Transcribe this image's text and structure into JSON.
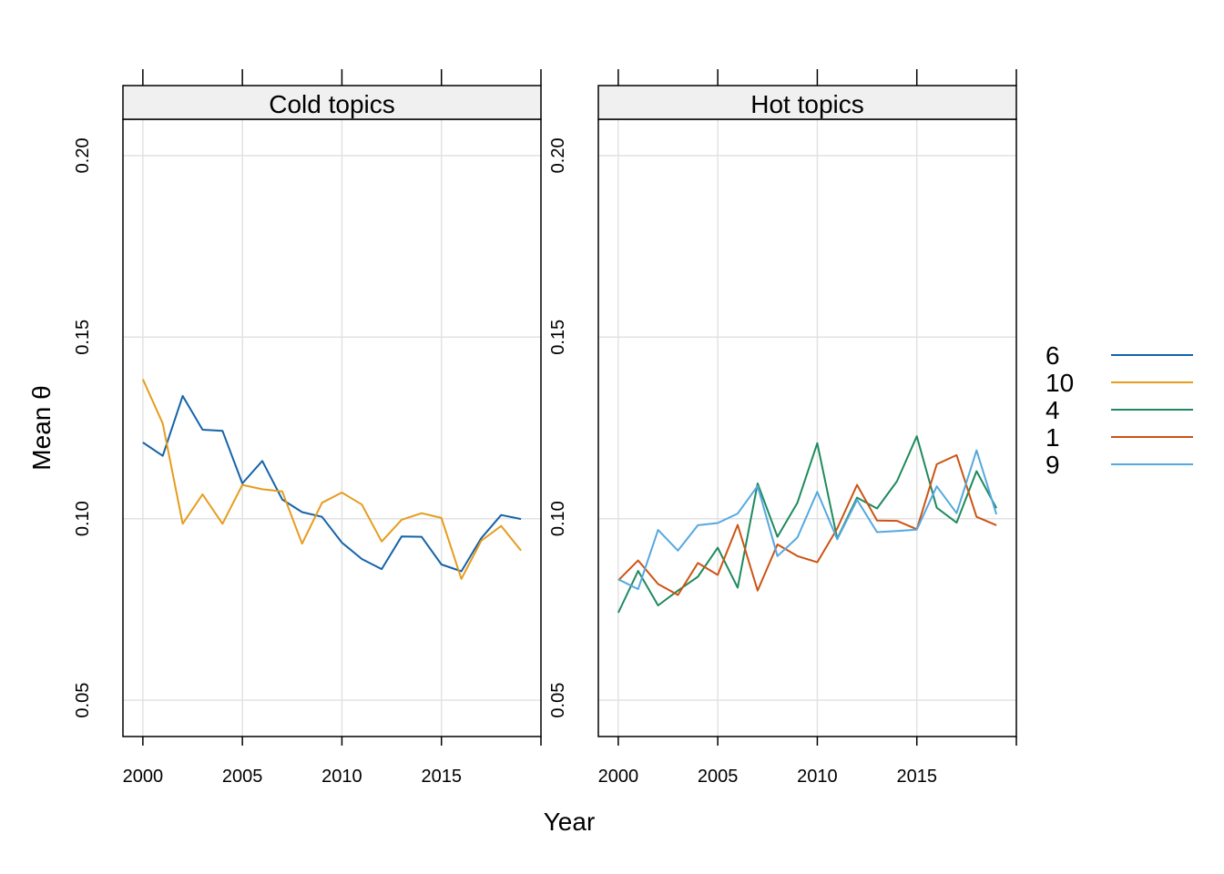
{
  "chart_data": {
    "type": "line",
    "xlabel": "Year",
    "ylabel": "Mean θ",
    "xlim": [
      1999,
      2020
    ],
    "ylim": [
      0.04,
      0.21
    ],
    "x_ticks": [
      2000,
      2005,
      2010,
      2015
    ],
    "y_ticks": [
      0.05,
      0.1,
      0.15,
      0.2
    ],
    "x_tick_labels": [
      "2000",
      "2005",
      "2010",
      "2015"
    ],
    "y_tick_labels": [
      "0.05",
      "0.10",
      "0.15",
      "0.20"
    ],
    "grid": true,
    "legend_position": "right",
    "legend": [
      {
        "name": "6",
        "color": "#1563a8"
      },
      {
        "name": "10",
        "color": "#e69c1d"
      },
      {
        "name": "4",
        "color": "#1f8a5e"
      },
      {
        "name": "1",
        "color": "#cc5414"
      },
      {
        "name": "9",
        "color": "#55a8e0"
      }
    ],
    "x": [
      2000,
      2001,
      2002,
      2003,
      2004,
      2005,
      2006,
      2007,
      2008,
      2009,
      2010,
      2011,
      2012,
      2013,
      2014,
      2015,
      2016,
      2017,
      2018,
      2019
    ],
    "panels": [
      {
        "title": "Cold topics",
        "series": [
          {
            "name": "6",
            "color": "#1563a8",
            "values": [
              0.121,
              0.1173,
              0.1338,
              0.1245,
              0.1242,
              0.1097,
              0.1159,
              0.1053,
              0.1018,
              0.1005,
              0.0934,
              0.0889,
              0.0861,
              0.0951,
              0.095,
              0.0874,
              0.0855,
              0.0946,
              0.101,
              0.0999
            ]
          },
          {
            "name": "10",
            "color": "#e69c1d",
            "values": [
              0.1384,
              0.1262,
              0.0986,
              0.1067,
              0.0986,
              0.1093,
              0.1081,
              0.1075,
              0.0931,
              0.1044,
              0.1072,
              0.1039,
              0.0937,
              0.0997,
              0.1015,
              0.1002,
              0.0834,
              0.0939,
              0.098,
              0.0912
            ]
          }
        ]
      },
      {
        "title": "Hot topics",
        "series": [
          {
            "name": "4",
            "color": "#1f8a5e",
            "values": [
              0.0741,
              0.0856,
              0.0761,
              0.0802,
              0.084,
              0.092,
              0.081,
              0.1097,
              0.095,
              0.1044,
              0.1208,
              0.0945,
              0.1058,
              0.1028,
              0.1103,
              0.1227,
              0.103,
              0.0989,
              0.1131,
              0.1029
            ]
          },
          {
            "name": "1",
            "color": "#cc5414",
            "values": [
              0.083,
              0.0885,
              0.082,
              0.079,
              0.0878,
              0.0845,
              0.0983,
              0.0802,
              0.0929,
              0.0897,
              0.088,
              0.0973,
              0.1093,
              0.0995,
              0.0994,
              0.0971,
              0.115,
              0.1175,
              0.1005,
              0.0982
            ]
          },
          {
            "name": "9",
            "color": "#55a8e0",
            "values": [
              0.0833,
              0.0806,
              0.0969,
              0.0912,
              0.0982,
              0.0988,
              0.1014,
              0.109,
              0.0897,
              0.0948,
              0.1074,
              0.0943,
              0.1052,
              0.0963,
              0.0966,
              0.097,
              0.1089,
              0.1015,
              0.1188,
              0.1012
            ]
          }
        ]
      }
    ]
  }
}
